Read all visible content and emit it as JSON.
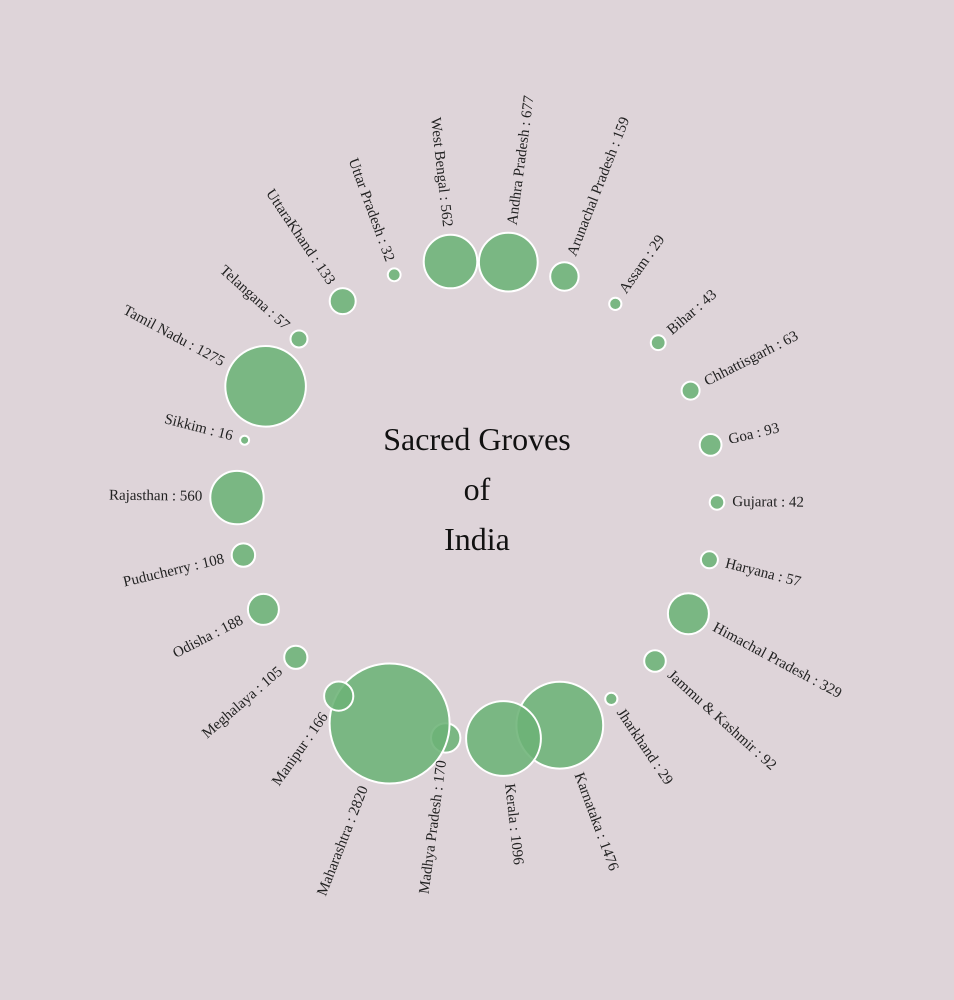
{
  "chart_data": {
    "type": "bubble",
    "title_lines": [
      "Sacred Groves",
      "of",
      "India"
    ],
    "label_separator": " : ",
    "colors": {
      "bubble": "#6cb376",
      "background": "#ded4d9"
    },
    "series": [
      {
        "name": "Andhra Pradesh",
        "value": 677
      },
      {
        "name": "Arunachal Pradesh",
        "value": 159
      },
      {
        "name": "Assam",
        "value": 29
      },
      {
        "name": "Bihar",
        "value": 43
      },
      {
        "name": "Chhattisgarh",
        "value": 63
      },
      {
        "name": "Goa",
        "value": 93
      },
      {
        "name": "Gujarat",
        "value": 42
      },
      {
        "name": "Haryana",
        "value": 57
      },
      {
        "name": "Himachal Pradesh",
        "value": 329
      },
      {
        "name": "Jammu & Kashmir",
        "value": 92
      },
      {
        "name": "Jharkhand",
        "value": 29
      },
      {
        "name": "Karnataka",
        "value": 1476
      },
      {
        "name": "Kerala",
        "value": 1096
      },
      {
        "name": "Madhya Pradesh",
        "value": 170
      },
      {
        "name": "Maharashtra",
        "value": 2820
      },
      {
        "name": "Manipur",
        "value": 166
      },
      {
        "name": "Meghalaya",
        "value": 105
      },
      {
        "name": "Odisha",
        "value": 188
      },
      {
        "name": "Puducherry",
        "value": 108
      },
      {
        "name": "Rajasthan",
        "value": 560
      },
      {
        "name": "Sikkim",
        "value": 16
      },
      {
        "name": "Tamil Nadu",
        "value": 1275
      },
      {
        "name": "Telangana",
        "value": 57
      },
      {
        "name": "UttaraKhand",
        "value": 133
      },
      {
        "name": "Uttar Pradesh",
        "value": 32
      },
      {
        "name": "West Bengal",
        "value": 562
      }
    ]
  }
}
